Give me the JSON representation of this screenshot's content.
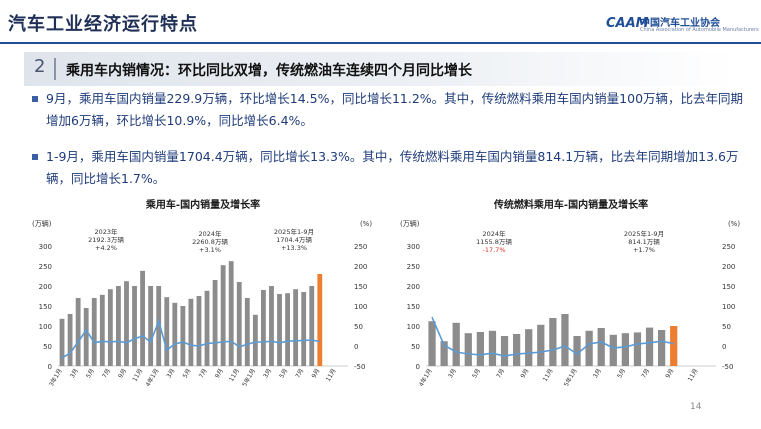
{
  "header": {
    "title": "汽车工业经济运行特点",
    "logo_text": "中国汽车工业协会",
    "logo_sub": "China Association of Automobile Manufacturers",
    "logo_mark": "CAAM"
  },
  "section": {
    "number": "2",
    "title": "乘用车内销情况：环比同比双增，传统燃油车连续四个月同比增长"
  },
  "bullets": [
    "9月，乘用车国内销量229.9万辆，环比增长14.5%，同比增长11.2%。其中，传统燃料乘用车国内销量100万辆，比去年同期增加6万辆，环比增长10.9%，同比增长6.4%。",
    "1-9月，乘用车国内销量1704.4万辆，同比增长13.3%。其中，传统燃料乘用车国内销量814.1万辆，比去年同期增加13.6万辆，同比增长1.7%。"
  ],
  "page_number": "14",
  "watermark": "中国汽车工业协会",
  "colors": {
    "bar": "#8c8c8c",
    "bar_highlight": "#ed7d31",
    "line": "#5b9bd5",
    "text_red": "#e0302a"
  },
  "chart_data": [
    {
      "type": "bar",
      "title": "乘用车-国内销量及增长率",
      "y_unit_left": "(万辆)",
      "y_unit_right": "(%)",
      "ylim": [
        0,
        300
      ],
      "y2lim": [
        -50,
        250
      ],
      "left_ticks": [
        "300",
        "250",
        "200",
        "150",
        "100",
        "50",
        "0"
      ],
      "right_ticks": [
        "250",
        "200",
        "150",
        "100",
        "50",
        "0",
        "-50"
      ],
      "x_tick_labels": [
        "2023年1月",
        "3月",
        "5月",
        "7月",
        "9月",
        "11月",
        "2024年1月",
        "3月",
        "5月",
        "7月",
        "9月",
        "11月",
        "2025年1月",
        "3月",
        "5月",
        "7月",
        "9月",
        "11月"
      ],
      "values": [
        118,
        130,
        170,
        145,
        170,
        178,
        192,
        200,
        212,
        200,
        238,
        200,
        200,
        172,
        158,
        150,
        168,
        175,
        188,
        215,
        252,
        262,
        210,
        170,
        128,
        190,
        200,
        180,
        182,
        192,
        185,
        200,
        230
      ],
      "growth": [
        -30,
        -18,
        10,
        40,
        8,
        12,
        10,
        12,
        8,
        18,
        25,
        10,
        62,
        -10,
        5,
        10,
        2,
        0,
        6,
        8,
        10,
        12,
        -2,
        4,
        10,
        10,
        12,
        8,
        12,
        13,
        14,
        15,
        11
      ],
      "annotations": [
        {
          "lines": [
            "2023年",
            "2192.3万辆",
            "+4.2%"
          ],
          "color": "#333333"
        },
        {
          "lines": [
            "2024年",
            "2260.8万辆",
            "+3.1%"
          ],
          "color": "#333333"
        },
        {
          "lines": [
            "2025年1-9月",
            "1704.4万辆",
            "+13.3%"
          ],
          "color": "#333333"
        }
      ]
    },
    {
      "type": "bar",
      "title": "传统燃料乘用车-国内销量及增长率",
      "y_unit_left": "(万辆)",
      "y_unit_right": "(%)",
      "ylim": [
        0,
        300
      ],
      "y2lim": [
        -50,
        250
      ],
      "left_ticks": [
        "300",
        "250",
        "200",
        "150",
        "100",
        "50",
        "0"
      ],
      "right_ticks": [
        "250",
        "200",
        "150",
        "100",
        "50",
        "0",
        "-50"
      ],
      "x_tick_labels": [
        "2024年1月",
        "3月",
        "5月",
        "7月",
        "9月",
        "11月",
        "2025年1月",
        "3月",
        "5月",
        "7月",
        "9月",
        "11月"
      ],
      "values": [
        112,
        62,
        108,
        82,
        85,
        88,
        75,
        80,
        92,
        103,
        120,
        130,
        75,
        88,
        95,
        78,
        82,
        84,
        96,
        90,
        100
      ],
      "growth": [
        72,
        2,
        -15,
        -20,
        -22,
        -18,
        -25,
        -20,
        -18,
        -15,
        -10,
        0,
        -20,
        5,
        10,
        -5,
        -2,
        5,
        8,
        12,
        6
      ],
      "annotations": [
        {
          "lines": [
            "2024年",
            "1155.8万辆",
            "-17.7%"
          ],
          "color": "#333333",
          "last_color": "#e0302a"
        },
        {
          "lines": [
            "2025年1-9月",
            "814.1万辆",
            "+1.7%"
          ],
          "color": "#333333"
        }
      ]
    }
  ]
}
